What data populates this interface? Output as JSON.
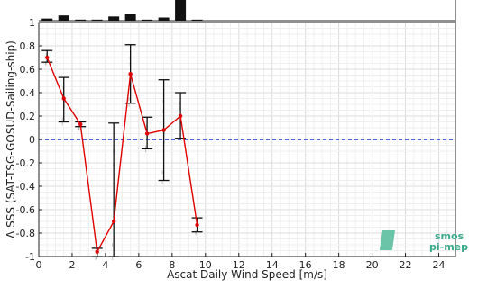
{
  "chart_data": {
    "type": "line",
    "xlabel": "Ascat Daily Wind Speed [m/s]",
    "ylabel": "Δ SSS (SAT-TSG-GOSUD-Sailing-ship)",
    "xlim": [
      0,
      25
    ],
    "ylim": [
      -1,
      1
    ],
    "xticks": [
      "0",
      "2",
      "4",
      "6",
      "8",
      "10",
      "12",
      "14",
      "16",
      "18",
      "20",
      "22",
      "24"
    ],
    "yticks": [
      "1",
      "0.8",
      "0.6",
      "0.4",
      "0.2",
      "0",
      "-0.2",
      "-0.4",
      "-0.6",
      "-0.8",
      "-1"
    ],
    "grid": true,
    "reference_line": {
      "y": 0,
      "color": "#1f2fd6",
      "style": "dashed"
    },
    "series": [
      {
        "color": "#e00000",
        "x": [
          0.5,
          1.5,
          2.5,
          3.5,
          4.5,
          5.5,
          6.5,
          7.5,
          8.5,
          9.5
        ],
        "y": [
          0.7,
          0.35,
          0.13,
          -0.96,
          -0.7,
          0.56,
          0.05,
          0.08,
          0.2,
          -0.73
        ],
        "err_low": [
          0.66,
          0.15,
          0.11,
          -1.0,
          -1.0,
          0.31,
          -0.08,
          -0.35,
          0.01,
          -0.79
        ],
        "err_high": [
          0.76,
          0.53,
          0.15,
          -0.93,
          0.14,
          0.81,
          0.19,
          0.51,
          0.4,
          -0.67
        ]
      }
    ],
    "histogram": {
      "bins": [
        0.5,
        1.5,
        2.5,
        3.5,
        4.5,
        5.5,
        6.5,
        7.5,
        8.5,
        9.5
      ],
      "counts": [
        2,
        5,
        1,
        1,
        4,
        6,
        1,
        3,
        30,
        1
      ]
    },
    "logo": {
      "line1": "smos",
      "line2": "pi-mep"
    }
  }
}
